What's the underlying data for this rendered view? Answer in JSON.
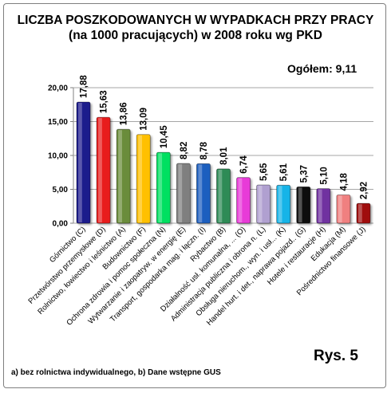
{
  "chart_data": {
    "type": "bar",
    "title_line1": "LICZBA POSZKODOWANYCH W WYPADKACH PRZY PRACY",
    "title_line2": "(na 1000 pracujących) w 2008 roku wg PKD",
    "total_label": "Ogółem: 9,11",
    "figure_label": "Rys. 5",
    "footnote": "a) bez rolnictwa indywidualnego, b) Dane wstępne GUS",
    "ylim": [
      0,
      20
    ],
    "yticks": [
      "0,00",
      "5,00",
      "10,00",
      "15,00",
      "20,00"
    ],
    "grid": true,
    "categories": [
      "Górnictwo (C)",
      "Przetwórstwo przemysłowe (D)",
      "Rolnictwo, łowiectwo i leśnictwo (A)",
      "Budownictwo (F)",
      "Ochrona zdrowia i pomoc społeczna (N)",
      "Wytwarzanie i zaopatryw. w energię (E)",
      "Transport, gospodarka mag. i łączn. (I)",
      "Rybactwo (B)",
      "Działalność usł. komunalna, ... (O)",
      "Administracja publiczna i obrona n. (L)",
      "Obsługa nieruchom., wyn. i usł... (K)",
      "Handel hurt. i det., naprawa pojazd.. (G)",
      "Hotele i restauracje (H)",
      "Edukacja (M)",
      "Pośrednictwo finansowe (J)"
    ],
    "values": [
      17.88,
      15.63,
      13.86,
      13.09,
      10.45,
      8.82,
      8.78,
      8.01,
      6.74,
      5.65,
      5.61,
      5.37,
      5.1,
      4.18,
      2.92
    ],
    "value_labels": [
      "17,88",
      "15,63",
      "13,86",
      "13,09",
      "10,45",
      "8,82",
      "8,78",
      "8,01",
      "6,74",
      "5,65",
      "5,61",
      "5,37",
      "5,10",
      "4,18",
      "2,92"
    ],
    "colors": [
      "#1c1a8c",
      "#e81c1c",
      "#6a8c3a",
      "#ffc000",
      "#00e060",
      "#7f7f7f",
      "#1f5fbf",
      "#2e8b57",
      "#e83ad8",
      "#b0a0d0",
      "#18b4e8",
      "#101010",
      "#7030a0",
      "#f08080",
      "#a01010"
    ]
  }
}
